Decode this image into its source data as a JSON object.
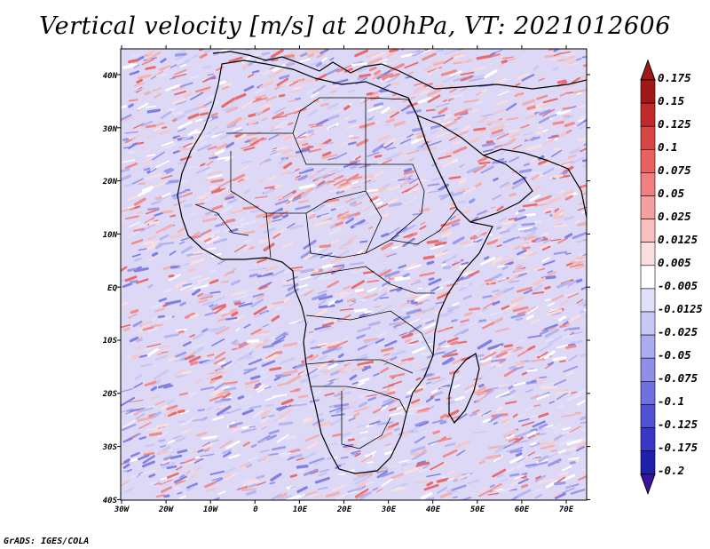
{
  "title": "Vertical velocity [m/s] at 200hPa, VT: 2021012606",
  "credit": "GrADS: IGES/COLA",
  "map": {
    "lon_labels": [
      "30W",
      "20W",
      "10W",
      "0",
      "10E",
      "20E",
      "30E",
      "40E",
      "50E",
      "60E",
      "70E"
    ],
    "lat_labels": [
      "40N",
      "30N",
      "20N",
      "10N",
      "EQ",
      "10S",
      "20S",
      "30S",
      "40S"
    ]
  },
  "colorbar": {
    "labels": [
      "0.175",
      "0.15",
      "0.125",
      "0.1",
      "0.075",
      "0.05",
      "0.025",
      "0.0125",
      "0.005",
      "-0.005",
      "-0.0125",
      "-0.025",
      "-0.05",
      "-0.075",
      "-0.1",
      "-0.125",
      "-0.175",
      "-0.2"
    ],
    "colors": [
      "#a01818",
      "#c02a2a",
      "#d84545",
      "#e86262",
      "#f08080",
      "#f4a0a0",
      "#f8c0c0",
      "#fbdede",
      "#ffffff",
      "#e0e0fb",
      "#c8c8f6",
      "#ababf0",
      "#8f8fea",
      "#7070e0",
      "#5252d4",
      "#3838c4",
      "#2020ac",
      "#3a12a0"
    ]
  }
}
